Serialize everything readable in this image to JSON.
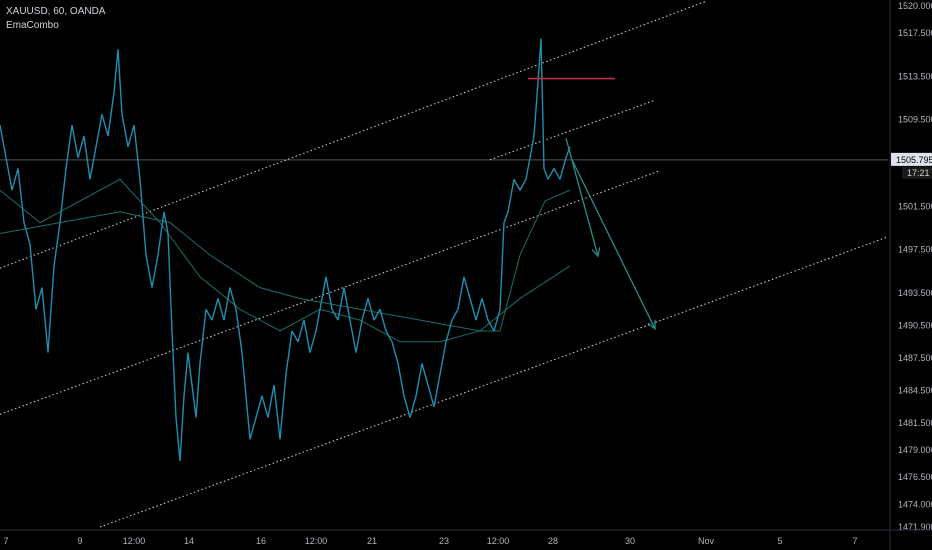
{
  "header": {
    "symbol": "XAUUSD, 60, OANDA",
    "indicator": "EmaCombo"
  },
  "price_label": {
    "value": "1505.795",
    "countdown": "17:21"
  },
  "colors": {
    "background": "#000000",
    "candle": "#1e8fb0",
    "ema": "#1a6f68",
    "channel": "#d8d8d8",
    "arrow": "#2a8c86",
    "resistance": "#c0304a",
    "price_line": "#555555",
    "axis_text": "#b2b5be"
  },
  "chart_data": {
    "type": "line",
    "title": "XAUUSD, 60, OANDA",
    "y_axis": {
      "range": [
        1471.9,
        1520.0
      ],
      "ticks": [
        "1520.000",
        "1517.500",
        "1513.500",
        "1509.500",
        "1505.500",
        "1501.500",
        "1497.500",
        "1493.500",
        "1490.500",
        "1487.500",
        "1484.500",
        "1481.500",
        "1479.000",
        "1476.500",
        "1474.000",
        "1471.900"
      ]
    },
    "x_axis": {
      "ticks": [
        "7",
        "9",
        "12:00",
        "14",
        "16",
        "12:00",
        "21",
        "23",
        "12:00",
        "28",
        "30",
        "Nov",
        "5",
        "7"
      ]
    },
    "price_series": {
      "name": "XAUUSD",
      "points": [
        [
          0,
          1509
        ],
        [
          6,
          1506
        ],
        [
          12,
          1503
        ],
        [
          18,
          1505
        ],
        [
          24,
          1500
        ],
        [
          30,
          1498
        ],
        [
          36,
          1492
        ],
        [
          42,
          1494
        ],
        [
          48,
          1488
        ],
        [
          54,
          1496
        ],
        [
          60,
          1500
        ],
        [
          66,
          1505
        ],
        [
          72,
          1509
        ],
        [
          78,
          1506
        ],
        [
          84,
          1508
        ],
        [
          90,
          1504
        ],
        [
          96,
          1507
        ],
        [
          102,
          1510
        ],
        [
          108,
          1508
        ],
        [
          114,
          1512
        ],
        [
          118,
          1516
        ],
        [
          122,
          1510
        ],
        [
          128,
          1507
        ],
        [
          134,
          1509
        ],
        [
          140,
          1504
        ],
        [
          146,
          1497
        ],
        [
          152,
          1494
        ],
        [
          158,
          1497
        ],
        [
          164,
          1501
        ],
        [
          168,
          1499
        ],
        [
          172,
          1490
        ],
        [
          176,
          1482
        ],
        [
          180,
          1478
        ],
        [
          184,
          1484
        ],
        [
          188,
          1488
        ],
        [
          192,
          1485
        ],
        [
          196,
          1482
        ],
        [
          200,
          1487
        ],
        [
          206,
          1492
        ],
        [
          212,
          1491
        ],
        [
          218,
          1493
        ],
        [
          224,
          1491
        ],
        [
          230,
          1494
        ],
        [
          236,
          1492
        ],
        [
          242,
          1488
        ],
        [
          246,
          1484
        ],
        [
          250,
          1480
        ],
        [
          256,
          1482
        ],
        [
          262,
          1484
        ],
        [
          268,
          1482
        ],
        [
          274,
          1485
        ],
        [
          280,
          1480
        ],
        [
          286,
          1486
        ],
        [
          292,
          1490
        ],
        [
          298,
          1489
        ],
        [
          304,
          1491
        ],
        [
          310,
          1488
        ],
        [
          316,
          1490
        ],
        [
          322,
          1493
        ],
        [
          326,
          1495
        ],
        [
          332,
          1492
        ],
        [
          338,
          1491
        ],
        [
          344,
          1494
        ],
        [
          350,
          1491
        ],
        [
          356,
          1488
        ],
        [
          362,
          1491
        ],
        [
          368,
          1493
        ],
        [
          374,
          1491
        ],
        [
          380,
          1492
        ],
        [
          386,
          1490
        ],
        [
          392,
          1489
        ],
        [
          398,
          1487
        ],
        [
          404,
          1484
        ],
        [
          410,
          1482
        ],
        [
          416,
          1484
        ],
        [
          422,
          1487
        ],
        [
          428,
          1485
        ],
        [
          434,
          1483
        ],
        [
          440,
          1486
        ],
        [
          446,
          1489
        ],
        [
          452,
          1491
        ],
        [
          458,
          1492
        ],
        [
          464,
          1495
        ],
        [
          470,
          1493
        ],
        [
          476,
          1491
        ],
        [
          482,
          1493
        ],
        [
          488,
          1491
        ],
        [
          494,
          1490
        ],
        [
          500,
          1492
        ],
        [
          504,
          1500
        ],
        [
          508,
          1501
        ],
        [
          514,
          1504
        ],
        [
          520,
          1503
        ],
        [
          526,
          1504
        ],
        [
          530,
          1506
        ],
        [
          534,
          1508
        ],
        [
          538,
          1513
        ],
        [
          541,
          1517
        ],
        [
          544,
          1505
        ],
        [
          548,
          1504
        ],
        [
          554,
          1505
        ],
        [
          560,
          1504
        ],
        [
          566,
          1506
        ],
        [
          570,
          1507
        ]
      ]
    },
    "ema_series": [
      {
        "name": "EMA fast",
        "points": [
          [
            0,
            1503
          ],
          [
            40,
            1500
          ],
          [
            80,
            1502
          ],
          [
            120,
            1504
          ],
          [
            160,
            1500
          ],
          [
            200,
            1495
          ],
          [
            240,
            1492
          ],
          [
            280,
            1490
          ],
          [
            320,
            1492
          ],
          [
            360,
            1491
          ],
          [
            400,
            1489
          ],
          [
            440,
            1489
          ],
          [
            480,
            1490
          ],
          [
            500,
            1490
          ],
          [
            520,
            1497
          ],
          [
            545,
            1502
          ],
          [
            570,
            1503
          ]
        ]
      },
      {
        "name": "EMA slow",
        "points": [
          [
            0,
            1499
          ],
          [
            60,
            1500
          ],
          [
            120,
            1501
          ],
          [
            170,
            1500
          ],
          [
            210,
            1497
          ],
          [
            260,
            1494
          ],
          [
            300,
            1493
          ],
          [
            360,
            1492
          ],
          [
            420,
            1491
          ],
          [
            480,
            1490
          ],
          [
            520,
            1493
          ],
          [
            570,
            1496
          ]
        ]
      }
    ],
    "channel_lines": [
      {
        "style": "dotted",
        "from": [
          0,
          1495.8
        ],
        "to": [
          705,
          1520.4
        ]
      },
      {
        "style": "dotted",
        "from": [
          0,
          1482.3
        ],
        "to": [
          660,
          1504.8
        ]
      },
      {
        "style": "dotted",
        "from": [
          100,
          1471.9
        ],
        "to": [
          888,
          1498.7
        ]
      },
      {
        "style": "dotted",
        "from": [
          490,
          1505.8
        ],
        "to": [
          655,
          1511.3
        ]
      }
    ],
    "resistance_line": {
      "from": [
        528,
        1513.3
      ],
      "to": [
        615,
        1513.3
      ]
    },
    "arrows": [
      {
        "from": [
          566,
          1507.8
        ],
        "to": [
          598,
          1496.9
        ]
      },
      {
        "from": [
          572,
          1505.8
        ],
        "to": [
          655,
          1490.2
        ]
      }
    ],
    "current_price": 1505.795,
    "grid": false,
    "legend": "none"
  }
}
